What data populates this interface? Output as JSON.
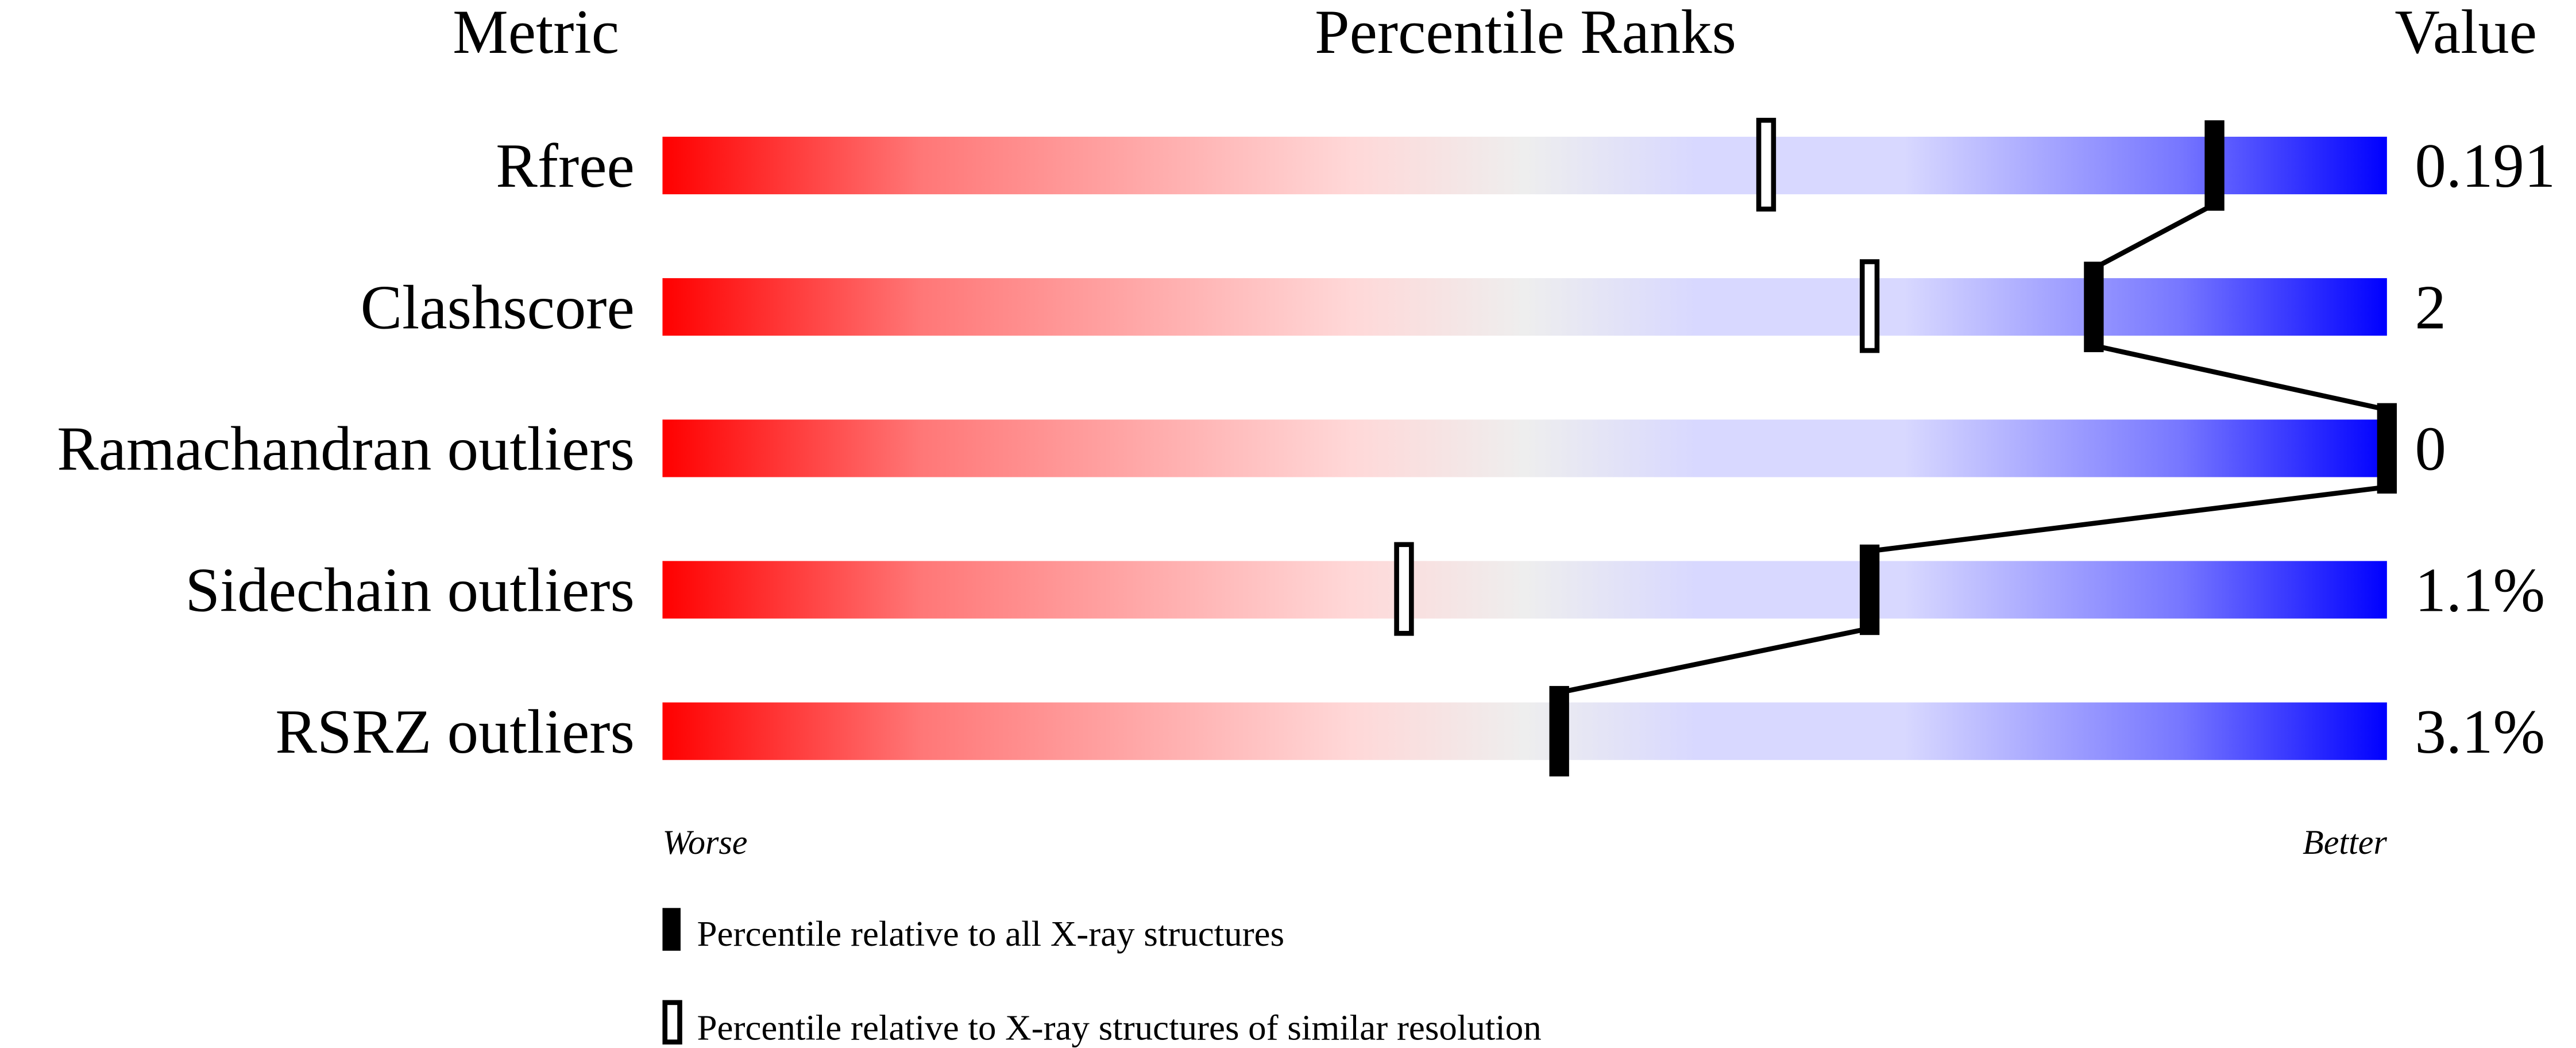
{
  "chart_data": {
    "type": "bar",
    "headers": {
      "metric": "Metric",
      "percentile": "Percentile Ranks",
      "value": "Value"
    },
    "metrics": [
      {
        "name": "Rfree",
        "value": "0.191",
        "percentile_all": 90,
        "percentile_similar": 64
      },
      {
        "name": "Clashscore",
        "value": "2",
        "percentile_all": 83,
        "percentile_similar": 70
      },
      {
        "name": "Ramachandran outliers",
        "value": "0",
        "percentile_all": 100,
        "percentile_similar": null
      },
      {
        "name": "Sidechain outliers",
        "value": "1.1%",
        "percentile_all": 70,
        "percentile_similar": 43
      },
      {
        "name": "RSRZ outliers",
        "value": "3.1%",
        "percentile_all": 52,
        "percentile_similar": null
      }
    ],
    "xlim": [
      0,
      100
    ],
    "axis_labels": {
      "left": "Worse",
      "right": "Better"
    },
    "legend": {
      "filled": "Percentile relative to all X-ray structures",
      "open": "Percentile relative to X-ray structures of similar resolution"
    },
    "colors": {
      "worse": "#ff0000",
      "middle": "#eeeeee",
      "better": "#0000ff"
    }
  }
}
